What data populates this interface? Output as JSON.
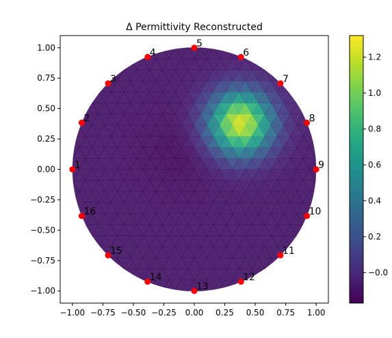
{
  "chart_data": {
    "type": "heatmap",
    "title": "Δ Permittivity Reconstructed",
    "xlabel": "",
    "ylabel": "",
    "xlim": [
      -1.1,
      1.1
    ],
    "ylim": [
      -1.1,
      1.1
    ],
    "x_ticks": [
      -1.0,
      -0.75,
      -0.5,
      -0.25,
      0.0,
      0.25,
      0.5,
      0.75,
      1.0
    ],
    "x_tick_labels": [
      "−1.00",
      "−0.75",
      "−0.50",
      "−0.25",
      "0.00",
      "0.25",
      "0.50",
      "0.75",
      "1.00"
    ],
    "y_ticks": [
      1.0,
      0.75,
      0.5,
      0.25,
      0.0,
      -0.25,
      -0.5,
      -0.75,
      -1.0
    ],
    "y_tick_labels": [
      "1.00",
      "0.75",
      "0.50",
      "0.25",
      "0.00",
      "−0.25",
      "−0.50",
      "−0.75",
      "−1.00"
    ],
    "domain": {
      "shape": "circle",
      "center": [
        0,
        0
      ],
      "radius": 1.0
    },
    "background_value": -0.08,
    "blobs": [
      {
        "x": 0.38,
        "y": 0.38,
        "radius": 0.27,
        "peak": 1.3
      },
      {
        "x": -0.1,
        "y": 0.15,
        "radius": 0.35,
        "peak": -0.05
      }
    ],
    "colormap": "viridis",
    "colorbar": {
      "vmin": -0.17,
      "vmax": 1.32,
      "ticks": [
        -0.0,
        0.2,
        0.4,
        0.6,
        0.8,
        1.0,
        1.2
      ],
      "tick_labels": [
        "−0.0",
        "0.2",
        "0.4",
        "0.6",
        "0.8",
        "1.0",
        "1.2"
      ]
    },
    "electrodes": [
      {
        "label": "1",
        "x": -1.0,
        "y": 0.0
      },
      {
        "label": "2",
        "x": -0.924,
        "y": 0.383
      },
      {
        "label": "3",
        "x": -0.707,
        "y": 0.707
      },
      {
        "label": "4",
        "x": -0.383,
        "y": 0.924
      },
      {
        "label": "5",
        "x": 0.0,
        "y": 1.0
      },
      {
        "label": "6",
        "x": 0.383,
        "y": 0.924
      },
      {
        "label": "7",
        "x": 0.707,
        "y": 0.707
      },
      {
        "label": "8",
        "x": 0.924,
        "y": 0.383
      },
      {
        "label": "9",
        "x": 1.0,
        "y": 0.0
      },
      {
        "label": "10",
        "x": 0.924,
        "y": -0.383
      },
      {
        "label": "11",
        "x": 0.707,
        "y": -0.707
      },
      {
        "label": "12",
        "x": 0.383,
        "y": -0.924
      },
      {
        "label": "13",
        "x": 0.0,
        "y": -1.0
      },
      {
        "label": "14",
        "x": -0.383,
        "y": -0.924
      },
      {
        "label": "15",
        "x": -0.707,
        "y": -0.707
      },
      {
        "label": "16",
        "x": -0.924,
        "y": -0.383
      }
    ],
    "electrode_color": "#ff0000",
    "grid": false
  }
}
